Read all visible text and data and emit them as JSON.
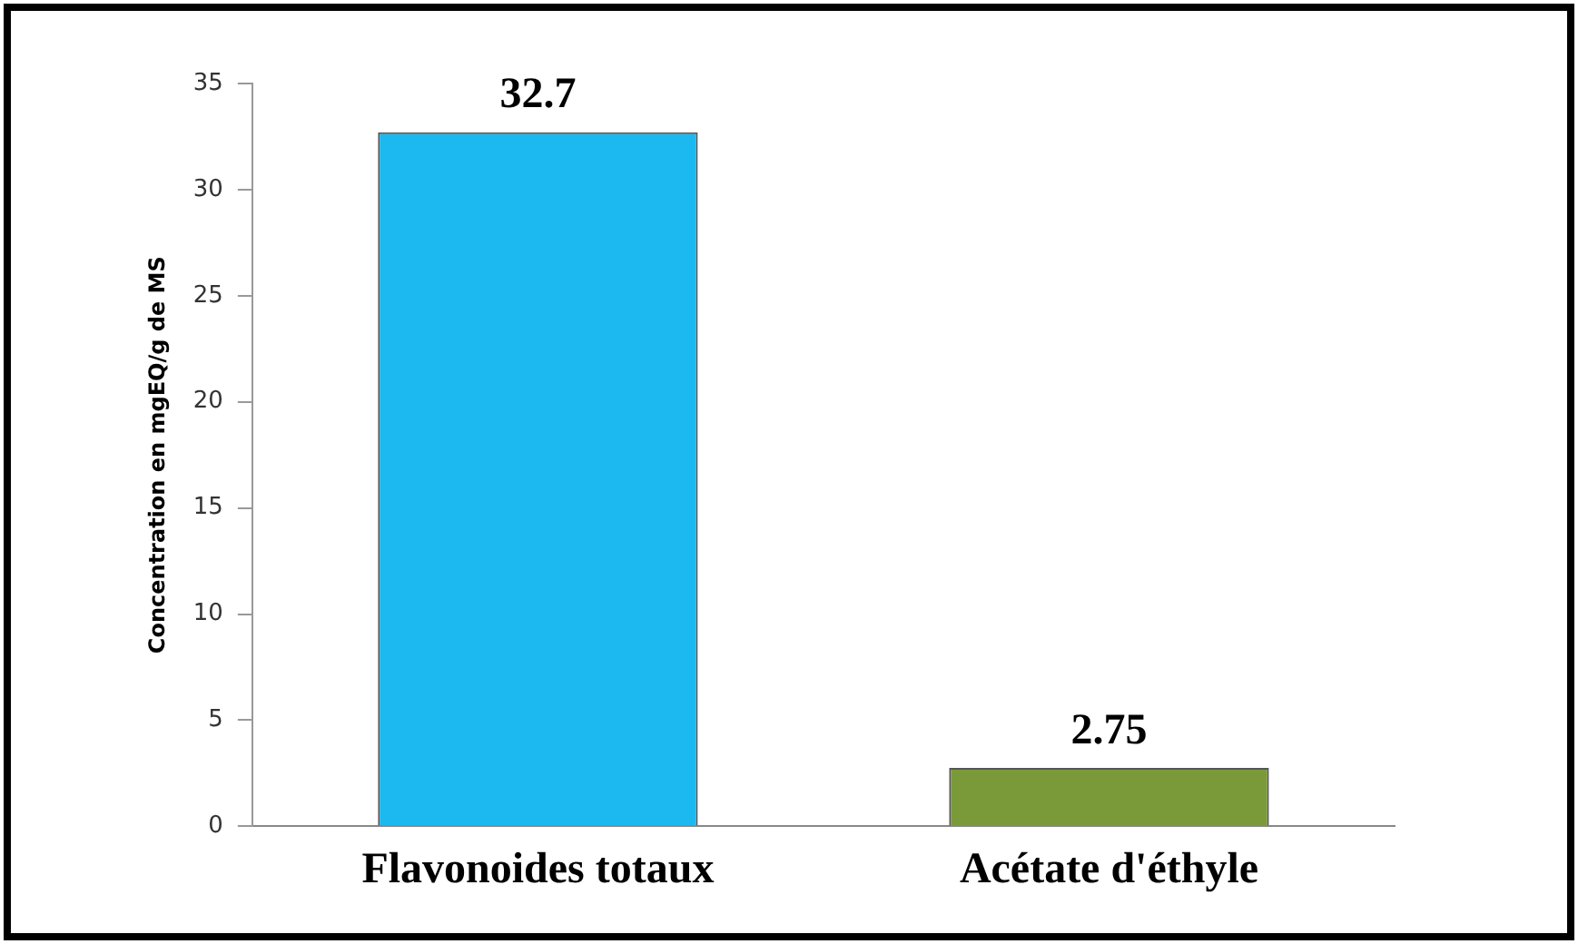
{
  "chart_data": {
    "type": "bar",
    "ylabel": "Concentration en mgEQ/g de MS",
    "categories": [
      "Flavonoides totaux",
      "Acétate d'éthyle"
    ],
    "values": [
      32.7,
      2.75
    ],
    "colors": [
      "#1cb8f0",
      "#7a9a3a"
    ],
    "ylim": [
      0,
      35
    ],
    "yticks": [
      0,
      5,
      10,
      15,
      20,
      25,
      30,
      35
    ],
    "grid": false,
    "legend": false,
    "data_labels": true
  }
}
